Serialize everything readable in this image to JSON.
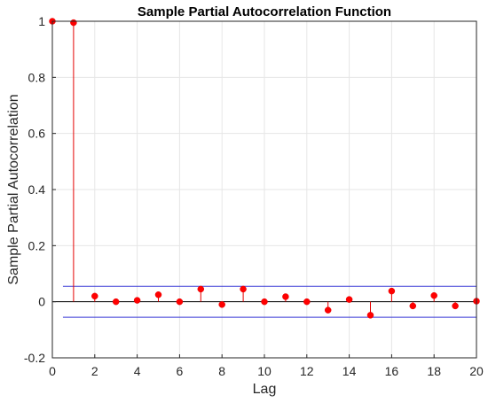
{
  "chart_data": {
    "type": "stem",
    "title": "Sample Partial Autocorrelation Function",
    "xlabel": "Lag",
    "ylabel": "Sample Partial Autocorrelation",
    "xlim": [
      0,
      20
    ],
    "ylim": [
      -0.2,
      1
    ],
    "xticks": [
      "0",
      "2",
      "4",
      "6",
      "8",
      "10",
      "12",
      "14",
      "16",
      "18",
      "20"
    ],
    "yticks": [
      "-0.2",
      "0",
      "0.2",
      "0.4",
      "0.6",
      "0.8",
      "1"
    ],
    "grid": true,
    "lags": [
      0,
      1,
      2,
      3,
      4,
      5,
      6,
      7,
      8,
      9,
      10,
      11,
      12,
      13,
      14,
      15,
      16,
      17,
      18,
      19,
      20
    ],
    "values": [
      1.0,
      0.995,
      0.02,
      0.0,
      0.005,
      0.025,
      0.0,
      0.045,
      -0.01,
      0.045,
      0.0,
      0.018,
      0.0,
      -0.03,
      0.008,
      -0.048,
      0.038,
      -0.015,
      0.022,
      -0.015,
      0.002
    ],
    "confidence_bounds": [
      0.055,
      -0.055
    ],
    "bounds_x_range": [
      0.5,
      20
    ],
    "colors": {
      "stem": "#e50000",
      "marker": "#ff0000",
      "bounds": "#3b3bd6",
      "grid": "#e6e6e6",
      "axis": "#262626",
      "zero_line": "#000000"
    }
  }
}
